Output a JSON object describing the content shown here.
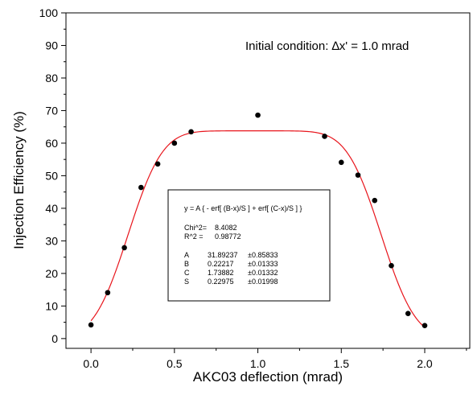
{
  "chart_data": {
    "type": "scatter",
    "xlabel": "AKC03 deflection (mrad)",
    "ylabel": "Injection Efficiency (%)",
    "xlim": [
      -0.15,
      2.27
    ],
    "ylim": [
      -3,
      100
    ],
    "x_ticks": [
      "0.0",
      "0.5",
      "1.0",
      "1.5",
      "2.0"
    ],
    "x_tick_values": [
      0,
      0.5,
      1.0,
      1.5,
      2.0
    ],
    "y_ticks": [
      "0",
      "10",
      "20",
      "30",
      "40",
      "50",
      "60",
      "70",
      "80",
      "90",
      "100"
    ],
    "y_tick_values": [
      0,
      10,
      20,
      30,
      40,
      50,
      60,
      70,
      80,
      90,
      100
    ],
    "grid": false,
    "annotation": "Initial condition: ∆x' = 1.0 mrad",
    "series": [
      {
        "type": "scatter",
        "color": "#000000",
        "x": [
          0.0,
          0.1,
          0.2,
          0.3,
          0.4,
          0.5,
          0.6,
          1.0,
          1.4,
          1.5,
          1.6,
          1.7,
          1.8,
          1.9,
          2.0
        ],
        "y": [
          4.2,
          14.1,
          27.9,
          46.4,
          53.6,
          60.0,
          63.5,
          68.6,
          62.1,
          54.1,
          50.2,
          42.4,
          22.4,
          7.7,
          4.0
        ]
      },
      {
        "type": "line",
        "color": "#e8141b",
        "model": "erf-fit",
        "x_range": [
          0.0,
          2.0
        ],
        "params": {
          "A": 31.89237,
          "B": 0.22217,
          "C": 1.73882,
          "S": 0.22975
        }
      }
    ],
    "fit_box": {
      "equation": "y = A { - erf[ (B-x)/S ] + erf[ (C-x)/S ] }",
      "chi2_label": "Chi^2=",
      "chi2_value": "8.4082",
      "r2_label": "R^2  =",
      "r2_value": "0.98772",
      "params": [
        {
          "name": "A",
          "value": "31.89237",
          "err": "±0.85833"
        },
        {
          "name": "B",
          "value": "0.22217",
          "err": "±0.01333"
        },
        {
          "name": "C",
          "value": "1.73882",
          "err": "±0.01332"
        },
        {
          "name": "S",
          "value": "0.22975",
          "err": "±0.01998"
        }
      ]
    }
  }
}
